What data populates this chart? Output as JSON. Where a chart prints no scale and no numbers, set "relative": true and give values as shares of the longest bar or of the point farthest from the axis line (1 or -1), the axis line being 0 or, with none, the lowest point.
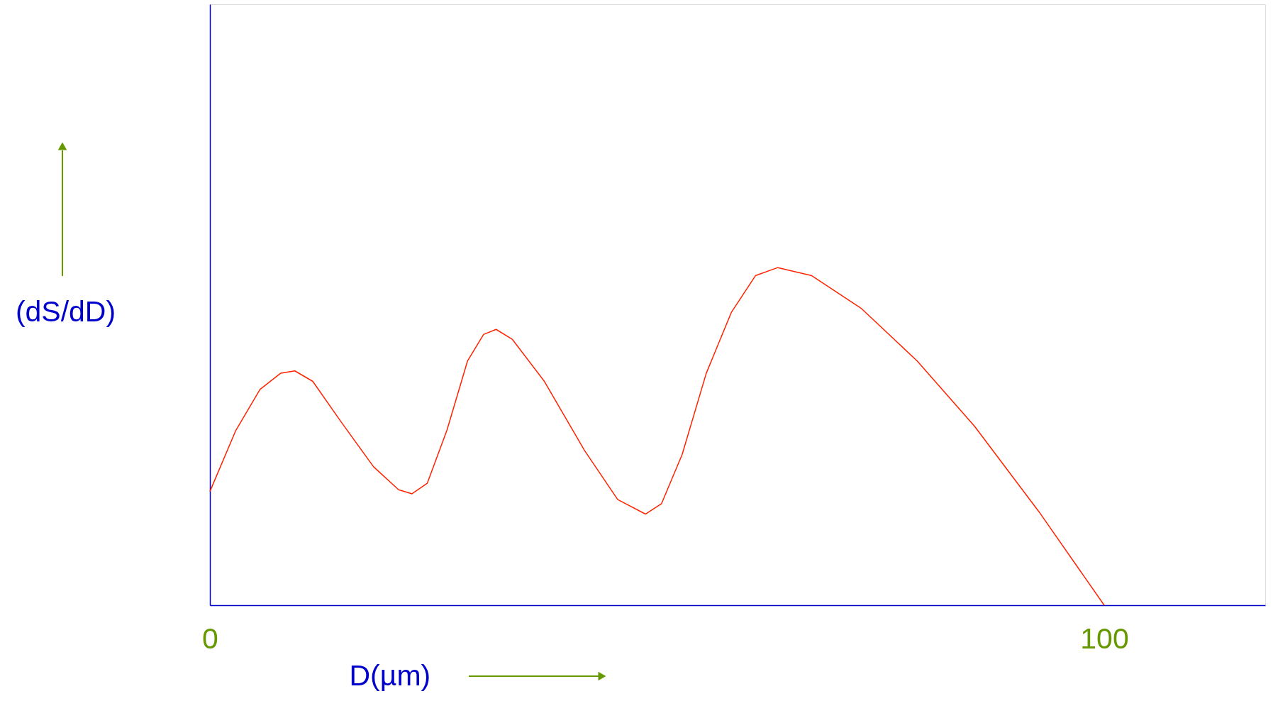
{
  "chart_data": {
    "type": "line",
    "relative": true,
    "xlabel": "D(µm)",
    "ylabel": "(dS/dD)",
    "xlim": [
      0,
      118
    ],
    "xticks": [
      0,
      100
    ],
    "tick_labels": "x",
    "grid": false,
    "marker": "none",
    "line_style": "solid",
    "series": [
      {
        "color": "#ff2200",
        "x": [
          0,
          2.9,
          5.6,
          7.9,
          9.5,
          11.5,
          14.7,
          18.3,
          21.1,
          22.6,
          24.3,
          26.5,
          28.8,
          30.6,
          32.0,
          33.8,
          37.4,
          41.9,
          45.6,
          48.7,
          50.5,
          52.8,
          55.5,
          58.3,
          61.0,
          63.5,
          67.3,
          72.8,
          79.1,
          85.5,
          92.7,
          100
        ],
        "values": [
          0.337,
          0.518,
          0.639,
          0.687,
          0.694,
          0.663,
          0.542,
          0.41,
          0.342,
          0.33,
          0.361,
          0.518,
          0.723,
          0.802,
          0.817,
          0.788,
          0.663,
          0.458,
          0.313,
          0.27,
          0.301,
          0.446,
          0.687,
          0.867,
          0.976,
          1.0,
          0.976,
          0.88,
          0.723,
          0.53,
          0.277,
          0
        ]
      }
    ]
  }
}
